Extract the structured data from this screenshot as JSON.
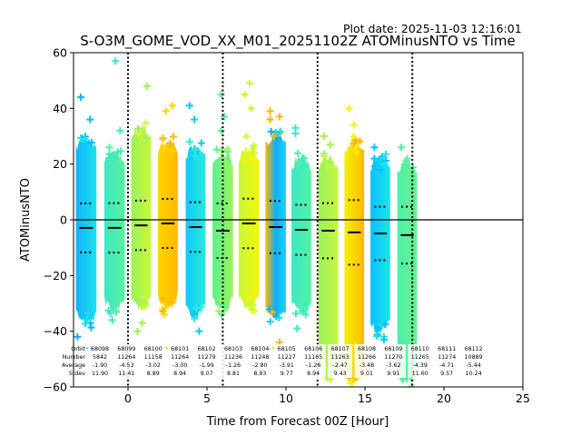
{
  "chart_data": {
    "type": "scatter",
    "title": "S-O3M_GOME_VOD_XX_M01_20251102Z ATOMinusNTO vs Time",
    "plot_date": "Plot date: 2025-11-03 12:16:01",
    "xlabel": "Time from Forecast 00Z [Hour]",
    "ylabel": "ATOMinusNTO",
    "xlim": [
      -3.45,
      25
    ],
    "ylim": [
      -60,
      60
    ],
    "xticks": [
      0,
      5,
      10,
      15,
      20,
      25
    ],
    "yticks": [
      -60,
      -40,
      -20,
      0,
      20,
      40,
      60
    ],
    "xtick_labels": [
      "0",
      "5",
      "10",
      "15",
      "20",
      "25"
    ],
    "ytick_labels": [
      "−60",
      "−40",
      "−20",
      "0",
      "20",
      "40",
      "60"
    ],
    "vlines": [
      0,
      6,
      12,
      18
    ],
    "hline": 0,
    "marker": "+",
    "bands": [
      {
        "x_start": -3.3,
        "x_end": -2.0,
        "mean": -2.9,
        "std": 8.8,
        "y_min": -39,
        "y_max": 31,
        "colors": [
          "#0fb4ff",
          "#1ee2e8"
        ],
        "outliers": [
          [
            -3.0,
            44
          ],
          [
            -2.4,
            36
          ],
          [
            -3.2,
            -42
          ],
          [
            -2.4,
            -46
          ]
        ]
      },
      {
        "x_start": -1.5,
        "x_end": -0.2,
        "mean": -2.9,
        "std": 8.9,
        "y_min": -34,
        "y_max": 26,
        "colors": [
          "#3ee8c0",
          "#58f0a0"
        ],
        "outliers": [
          [
            -0.8,
            57
          ],
          [
            -0.5,
            32
          ],
          [
            -1.0,
            -36
          ]
        ]
      },
      {
        "x_start": 0.2,
        "x_end": 1.45,
        "mean": -2.0,
        "std": 8.9,
        "y_min": -33,
        "y_max": 35,
        "colors": [
          "#9cf25a",
          "#c8f83a"
        ],
        "outliers": [
          [
            1.2,
            48
          ],
          [
            0.6,
            -40
          ],
          [
            0.9,
            -37
          ]
        ]
      },
      {
        "x_start": 1.9,
        "x_end": 3.15,
        "mean": -1.3,
        "std": 8.8,
        "y_min": -33,
        "y_max": 30,
        "colors": [
          "#ffd400",
          "#ffb700"
        ],
        "outliers": [
          [
            2.8,
            41
          ],
          [
            2.4,
            39
          ],
          [
            2.2,
            29
          ],
          [
            2.3,
            -34
          ],
          [
            2.6,
            -46
          ]
        ]
      },
      {
        "x_start": 3.65,
        "x_end": 4.9,
        "mean": -2.6,
        "std": 8.9,
        "y_min": -36,
        "y_max": 28,
        "colors": [
          "#10c8ff",
          "#28ecd8"
        ],
        "outliers": [
          [
            4.2,
            36
          ],
          [
            3.9,
            41
          ],
          [
            4.5,
            -40
          ]
        ]
      },
      {
        "x_start": 5.35,
        "x_end": 6.65,
        "mean": -3.9,
        "std": 9.8,
        "y_min": -34,
        "y_max": 26,
        "colors": [
          "#5ef090",
          "#9af25c"
        ],
        "outliers": [
          [
            5.9,
            45
          ],
          [
            6.1,
            37
          ],
          [
            5.9,
            32
          ]
        ]
      },
      {
        "x_start": 7.0,
        "x_end": 8.3,
        "mean": -1.3,
        "std": 8.9,
        "y_min": -33,
        "y_max": 27,
        "colors": [
          "#c8f83a",
          "#f2f60a"
        ],
        "outliers": [
          [
            7.7,
            49
          ],
          [
            7.4,
            45
          ],
          [
            7.8,
            40
          ],
          [
            7.5,
            30
          ]
        ]
      },
      {
        "x_start": 8.7,
        "x_end": 10.0,
        "mean": -2.6,
        "std": 9.4,
        "y_min": -37,
        "y_max": 32,
        "colors": [
          "#ffb700",
          "#0ab0ff",
          "#18d8f4"
        ],
        "outliers": [
          [
            9.0,
            39
          ],
          [
            9.0,
            36
          ],
          [
            9.6,
            37
          ],
          [
            9.0,
            -46
          ],
          [
            9.6,
            -44
          ]
        ]
      },
      {
        "x_start": 10.35,
        "x_end": 11.6,
        "mean": -3.6,
        "std": 9.0,
        "y_min": -35,
        "y_max": 24,
        "colors": [
          "#38eac4",
          "#58f0a6"
        ],
        "outliers": [
          [
            10.6,
            33
          ],
          [
            10.6,
            31
          ],
          [
            10.7,
            -39
          ],
          [
            11.1,
            -33
          ]
        ]
      },
      {
        "x_start": 12.05,
        "x_end": 13.3,
        "mean": -3.9,
        "std": 9.9,
        "y_min": -58,
        "y_max": 24,
        "colors": [
          "#9cf25a",
          "#c4f640"
        ],
        "outliers": [
          [
            12.4,
            30
          ],
          [
            12.8,
            27
          ]
        ]
      },
      {
        "x_start": 13.7,
        "x_end": 14.95,
        "mean": -4.5,
        "std": 11.6,
        "y_min": -60,
        "y_max": 30,
        "colors": [
          "#f8f200",
          "#ffb800"
        ],
        "outliers": [
          [
            14.0,
            40
          ],
          [
            14.3,
            34
          ],
          [
            14.4,
            -45
          ]
        ]
      },
      {
        "x_start": 15.35,
        "x_end": 16.6,
        "mean": -4.9,
        "std": 9.6,
        "y_min": -42,
        "y_max": 24,
        "colors": [
          "#0ac0ff",
          "#20e4e4"
        ],
        "outliers": [
          [
            15.6,
            26
          ],
          [
            15.6,
            22
          ],
          [
            16.0,
            18
          ],
          [
            16.2,
            -43
          ]
        ]
      },
      {
        "x_start": 17.05,
        "x_end": 18.3,
        "mean": -5.5,
        "std": 10.2,
        "y_min": -60,
        "y_max": 22,
        "colors": [
          "#4ef0a8",
          "#68f090"
        ],
        "outliers": [
          [
            17.3,
            26
          ],
          [
            17.6,
            20
          ]
        ]
      }
    ],
    "annotation_header": [
      "Orbit",
      "Number",
      "Average",
      "Stdev"
    ],
    "annotations": [
      {
        "orbit": "68098",
        "number": "5842",
        "average": "-1.90",
        "stdev": "11.90"
      },
      {
        "orbit": "68099",
        "number": "11264",
        "average": "-4.53",
        "stdev": "11.41"
      },
      {
        "orbit": "68100",
        "number": "11158",
        "average": "-3.02",
        "stdev": "8.89"
      },
      {
        "orbit": "68101",
        "number": "11264",
        "average": "-3.00",
        "stdev": "8.94"
      },
      {
        "orbit": "68102",
        "number": "11279",
        "average": "-1.99",
        "stdev": "9.07"
      },
      {
        "orbit": "68103",
        "number": "11236",
        "average": "-1.26",
        "stdev": "8.81"
      },
      {
        "orbit": "68104",
        "number": "11248",
        "average": "-2.80",
        "stdev": "8.93"
      },
      {
        "orbit": "68105",
        "number": "11227",
        "average": "-3.91",
        "stdev": "9.77"
      },
      {
        "orbit": "68106",
        "number": "11165",
        "average": "-1.26",
        "stdev": "8.94"
      },
      {
        "orbit": "68107",
        "number": "11263",
        "average": "-2.47",
        "stdev": "9.43"
      },
      {
        "orbit": "68108",
        "number": "11266",
        "average": "-3.48",
        "stdev": "9.01"
      },
      {
        "orbit": "68109",
        "number": "11270",
        "average": "-3.62",
        "stdev": "9.91"
      },
      {
        "orbit": "68110",
        "number": "11265",
        "average": "-4.39",
        "stdev": "11.60"
      },
      {
        "orbit": "68111",
        "number": "11274",
        "average": "-4.71",
        "stdev": "9.57"
      },
      {
        "orbit": "68112",
        "number": "10889",
        "average": "-5.44",
        "stdev": "10.24"
      }
    ]
  }
}
